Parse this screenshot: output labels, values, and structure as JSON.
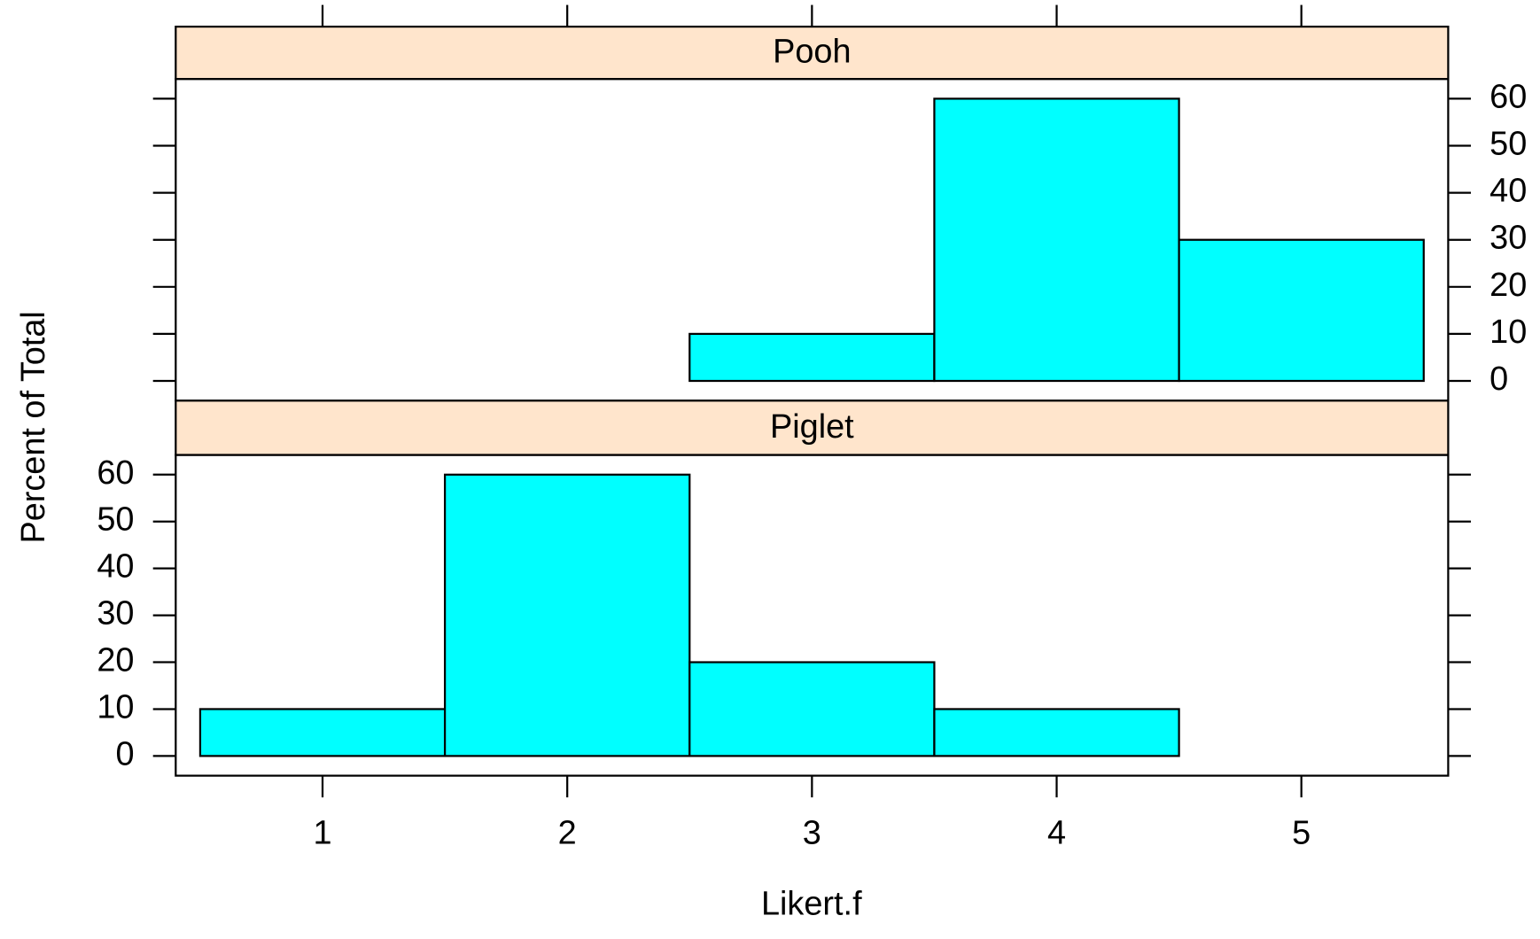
{
  "chart_data": [
    {
      "type": "histogram",
      "title": "Pooh",
      "ylabel": "Percent of Total",
      "bins": [
        0.5,
        1.5,
        2.5,
        3.5,
        4.5,
        5.5
      ],
      "values": [
        0,
        0,
        10,
        60,
        30
      ],
      "color": "#00ffff",
      "xlim": [
        0.4,
        5.6
      ],
      "xticks": [
        1,
        2,
        3,
        4,
        5
      ],
      "ylim": [
        -4.2,
        64.2
      ],
      "yticks": [
        0,
        10,
        20,
        30,
        40,
        50,
        60
      ],
      "tick_labels": "right"
    },
    {
      "type": "histogram",
      "title": "Piglet",
      "xlabel": "Likert.f",
      "bins": [
        0.5,
        1.5,
        2.5,
        3.5,
        4.5,
        5.5
      ],
      "values": [
        10,
        60,
        20,
        10,
        0
      ],
      "color": "#00ffff",
      "xlim": [
        0.4,
        5.6
      ],
      "xticks": [
        1,
        2,
        3,
        4,
        5
      ],
      "ylim": [
        -4.2,
        64.2
      ],
      "yticks": [
        0,
        10,
        20,
        30,
        40,
        50,
        60
      ],
      "tick_labels": "left"
    }
  ]
}
